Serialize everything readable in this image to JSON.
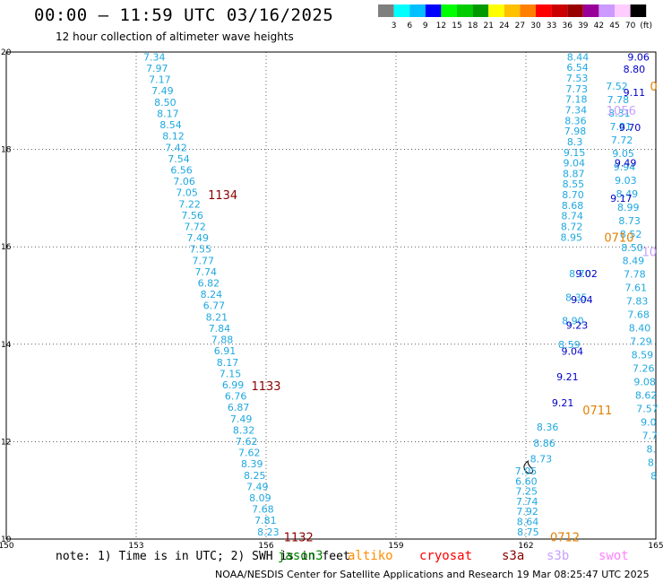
{
  "header": {
    "title": "00:00 – 11:59 UTC 03/16/2025",
    "subtitle": "12 hour collection of altimeter wave heights"
  },
  "legend": {
    "labels": [
      "3",
      "6",
      "9",
      "12",
      "15",
      "18",
      "21",
      "24",
      "27",
      "30",
      "33",
      "36",
      "39",
      "42",
      "45",
      "70",
      "(ft)"
    ],
    "colors": [
      "#7f7f7f",
      "#00ffff",
      "#00bfff",
      "#0000ff",
      "#00ff00",
      "#00cc00",
      "#009900",
      "#ffff00",
      "#ffc000",
      "#ff8000",
      "#ff0000",
      "#cc0000",
      "#990000",
      "#990099",
      "#cc99ff",
      "#ffccff",
      "#000000"
    ]
  },
  "map": {
    "x_ticks": [
      "150",
      "153",
      "156",
      "159",
      "162",
      "165"
    ],
    "y_ticks": [
      "10",
      "12",
      "14",
      "16",
      "18",
      "20"
    ],
    "x_range": [
      150,
      165
    ],
    "y_range": [
      10,
      20
    ]
  },
  "tracks": [
    {
      "color": "#1ea8e0",
      "lon_start": 153.42,
      "lat_start": 19.9,
      "lon_end": 156.05,
      "lat_end": 10.15,
      "values": [
        "7.34",
        "7.97",
        "7.17",
        "7.49",
        "8.50",
        "8.17",
        "8.54",
        "8.12",
        "7.42",
        "7.54",
        "6.56",
        "7.06",
        "7.05",
        "7.22",
        "7.56",
        "7.72",
        "7.49",
        "7.55",
        "7.77",
        "7.74",
        "6.82",
        "8.24",
        "6.77",
        "8.21",
        "7.84",
        "7.88",
        "6.91",
        "8.17",
        "7.15",
        "6.99",
        "6.76",
        "6.87",
        "7.49",
        "8.32",
        "7.62",
        "7.62",
        "8.39",
        "8.25",
        "7.49",
        "8.09",
        "7.68",
        "7.81",
        "8.23"
      ]
    },
    {
      "color": "#1ea8e0",
      "lon_start": 162.0,
      "lat_start": 11.4,
      "lon_end": 162.05,
      "lat_end": 10.15,
      "values": [
        "7.05",
        "6.60",
        "7.25",
        "7.74",
        "7.92",
        "8.64",
        "8.75"
      ]
    },
    {
      "color": "#1ea8e0",
      "lon_start": 162.5,
      "lat_start": 12.3,
      "lon_end": 162.35,
      "lat_end": 11.65,
      "values": [
        "8.36",
        "8.86",
        "8.73"
      ]
    },
    {
      "color": "#1ea8e0",
      "lon_start": 163.2,
      "lat_start": 19.9,
      "lon_end": 163.05,
      "lat_end": 16.2,
      "values": [
        "8.44",
        "6.54",
        "7.53",
        "7.73",
        "7.18",
        "7.34",
        "8.36",
        "7.98",
        "8.3",
        "9.15",
        "9.04",
        "8.87",
        "8.55",
        "8.70",
        "8.68",
        "8.74",
        "8.72",
        "8.95"
      ]
    },
    {
      "color": "#1ea8e0",
      "lon_start": 163.25,
      "lat_start": 15.45,
      "lon_end": 163.0,
      "lat_end": 14.0,
      "values": [
        "8.70",
        "8.35",
        "8.90",
        "8.59"
      ]
    },
    {
      "color": "#1ea8e0",
      "lon_start": 164.1,
      "lat_start": 19.3,
      "lon_end": 164.95,
      "lat_end": 11.3,
      "values": [
        "7.52",
        "7.78",
        "8.31",
        "7.81",
        "7.72",
        "9.05",
        "9.94",
        "9.03",
        "8.49",
        "8.99",
        "8.73",
        "8.52",
        "8.50",
        "8.49",
        "7.78",
        "7.61",
        "7.83",
        "7.68",
        "8.40",
        "7.29",
        "8.59",
        "7.26",
        "9.08",
        "8.62",
        "7.57",
        "9.0",
        "7.7",
        "8.",
        "8.",
        "8"
      ]
    },
    {
      "color": "#0000c8",
      "lon_start": 163.4,
      "lat_start": 15.45,
      "lon_end": 162.85,
      "lat_end": 12.8,
      "values": [
        "9.02",
        "9.04",
        "9.23",
        "9.04",
        "9.21",
        "9.21"
      ]
    },
    {
      "color": "#0000c8",
      "lon_start": 164.6,
      "lat_start": 19.9,
      "lon_end": 164.2,
      "lat_end": 17.0,
      "values": [
        "9.06",
        "9.11",
        "9.70",
        "9.49",
        "9.17"
      ]
    },
    {
      "color": "#0000c8",
      "lon_start": 164.5,
      "lat_start": 19.65,
      "lon_end": 164.45,
      "lat_end": 19.55,
      "values": [
        "8.80"
      ]
    }
  ],
  "passes": [
    {
      "id": "1134",
      "color": "#8b0000",
      "lon": 155.0,
      "lat": 17.07
    },
    {
      "id": "1133",
      "color": "#8b0000",
      "lon": 156.0,
      "lat": 13.15
    },
    {
      "id": "1132",
      "color": "#8b0000",
      "lon": 156.75,
      "lat": 10.05
    },
    {
      "id": "0710",
      "color": "#e08000",
      "lon": 164.15,
      "lat": 16.2
    },
    {
      "id": "0711",
      "color": "#e08000",
      "lon": 163.65,
      "lat": 12.65
    },
    {
      "id": "0712",
      "color": "#e08000",
      "lon": 162.9,
      "lat": 10.05
    },
    {
      "id": "0",
      "color": "#e08000",
      "lon": 164.95,
      "lat": 19.3
    },
    {
      "id": "1056",
      "color": "#c8a0ff",
      "lon": 164.2,
      "lat": 18.8
    },
    {
      "id": "10",
      "color": "#c8a0ff",
      "lon": 164.85,
      "lat": 15.9
    }
  ],
  "footer": {
    "note": "note: 1) Time is in UTC; 2) SWH is in feet",
    "credit": "NOAA/NESDIS Center for Satellite Applications and Research   19 Mar 08:25:47 UTC 2025",
    "satellites": [
      {
        "name": "jason3",
        "color": "#008000"
      },
      {
        "name": "altiko",
        "color": "#ff8c00"
      },
      {
        "name": "cryosat",
        "color": "#ff0000"
      },
      {
        "name": "s3a",
        "color": "#8b0000"
      },
      {
        "name": "s3b",
        "color": "#c8a0ff"
      },
      {
        "name": "swot",
        "color": "#ff80ff"
      }
    ]
  }
}
